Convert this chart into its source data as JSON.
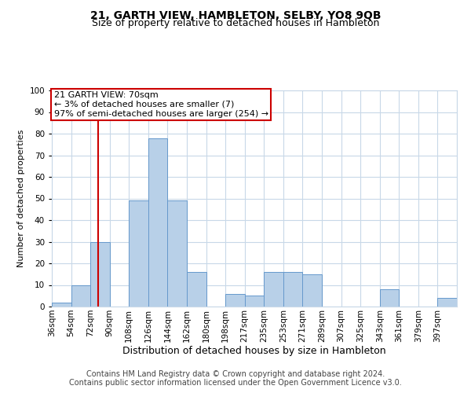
{
  "title": "21, GARTH VIEW, HAMBLETON, SELBY, YO8 9QB",
  "subtitle": "Size of property relative to detached houses in Hambleton",
  "xlabel": "Distribution of detached houses by size in Hambleton",
  "ylabel": "Number of detached properties",
  "categories": [
    "36sqm",
    "54sqm",
    "72sqm",
    "90sqm",
    "108sqm",
    "126sqm",
    "144sqm",
    "162sqm",
    "180sqm",
    "198sqm",
    "217sqm",
    "235sqm",
    "253sqm",
    "271sqm",
    "289sqm",
    "307sqm",
    "325sqm",
    "343sqm",
    "361sqm",
    "379sqm",
    "397sqm"
  ],
  "values": [
    2,
    10,
    30,
    0,
    49,
    78,
    49,
    16,
    0,
    6,
    5,
    16,
    16,
    15,
    0,
    0,
    0,
    8,
    0,
    0,
    4
  ],
  "bar_color": "#b8d0e8",
  "bar_edge_color": "#6699cc",
  "marker_label_line1": "21 GARTH VIEW: 70sqm",
  "marker_label_line2": "← 3% of detached houses are smaller (7)",
  "marker_label_line3": "97% of semi-detached houses are larger (254) →",
  "annotation_box_color": "#cc0000",
  "ylim": [
    0,
    100
  ],
  "yticks": [
    0,
    10,
    20,
    30,
    40,
    50,
    60,
    70,
    80,
    90,
    100
  ],
  "footer_line1": "Contains HM Land Registry data © Crown copyright and database right 2024.",
  "footer_line2": "Contains public sector information licensed under the Open Government Licence v3.0.",
  "bg_color": "#ffffff",
  "grid_color": "#c8d8e8",
  "title_fontsize": 10,
  "subtitle_fontsize": 9,
  "ylabel_fontsize": 8,
  "xlabel_fontsize": 9,
  "tick_fontsize": 7.5,
  "annot_fontsize": 8,
  "footer_fontsize": 7
}
